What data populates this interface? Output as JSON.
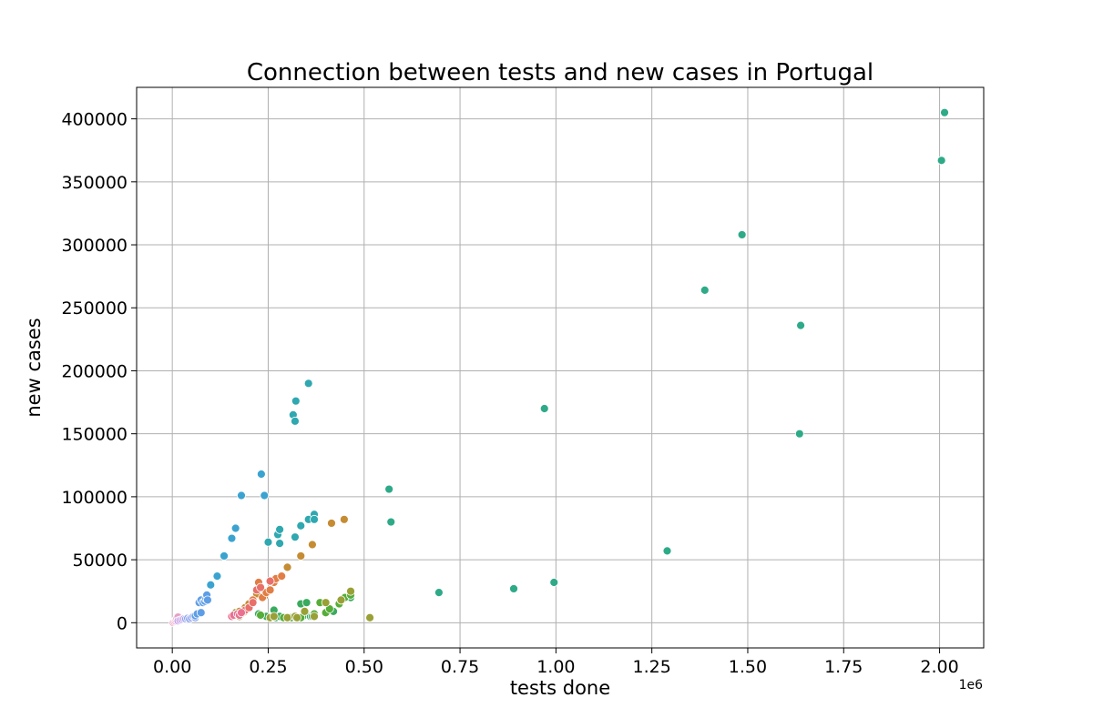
{
  "chart_data": {
    "type": "scatter",
    "title": "Connection between tests and new cases in Portugal",
    "xlabel": "tests done",
    "ylabel": "new cases",
    "x_offset_label": "1e6",
    "x_scale": 1000000,
    "xlim": [
      -93000,
      2115000
    ],
    "ylim": [
      -20000,
      425000
    ],
    "xticks": [
      0,
      250000,
      500000,
      750000,
      1000000,
      1250000,
      1500000,
      1750000,
      2000000
    ],
    "xtick_labels": [
      "0.00",
      "0.25",
      "0.50",
      "0.75",
      "1.00",
      "1.25",
      "1.50",
      "1.75",
      "2.00"
    ],
    "yticks": [
      0,
      50000,
      100000,
      150000,
      200000,
      250000,
      300000,
      350000,
      400000
    ],
    "ytick_labels": [
      "0",
      "50000",
      "100000",
      "150000",
      "200000",
      "250000",
      "300000",
      "350000",
      "400000"
    ],
    "grid": true,
    "colors": [
      "#e6a0c4",
      "#c4a0e8",
      "#8fa4ee",
      "#5e9ee6",
      "#3ba3d0",
      "#2fa8b0",
      "#2eaa88",
      "#3aab5e",
      "#56ad38",
      "#99a035",
      "#c58c33",
      "#e27d45",
      "#e8706a",
      "#ea7090"
    ],
    "series": [
      {
        "color_index": 0,
        "x": [
          2000,
          5000,
          8000,
          10000,
          12000,
          15000
        ],
        "y": [
          200,
          1000,
          1500,
          2500,
          3500,
          4500
        ]
      },
      {
        "color_index": 1,
        "x": [
          15000,
          20000,
          25000,
          30000
        ],
        "y": [
          1500,
          2000,
          2500,
          3000
        ]
      },
      {
        "color_index": 2,
        "x": [
          35000,
          40000,
          45000,
          50000,
          55000,
          60000
        ],
        "y": [
          3000,
          3500,
          3000,
          4000,
          5000,
          4000
        ]
      },
      {
        "color_index": 3,
        "x": [
          60000,
          65000,
          70000,
          75000,
          80000,
          85000,
          88000,
          90000,
          92000,
          75000
        ],
        "y": [
          5500,
          7000,
          16000,
          18000,
          16000,
          17000,
          19000,
          22000,
          18000,
          8000
        ]
      },
      {
        "color_index": 4,
        "x": [
          100000,
          117000,
          135000,
          155000,
          165000,
          180000,
          232000,
          240000
        ],
        "y": [
          30000,
          37000,
          53000,
          67000,
          75000,
          101000,
          118000,
          101000
        ]
      },
      {
        "color_index": 5,
        "x": [
          250000,
          275000,
          280000,
          280000,
          315000,
          320000,
          320000,
          322000,
          335000,
          355000,
          355000,
          370000,
          370000
        ],
        "y": [
          64000,
          70000,
          74000,
          63000,
          165000,
          160000,
          68000,
          176000,
          77000,
          190000,
          82000,
          86000,
          82000
        ]
      },
      {
        "color_index": 6,
        "x": [
          565000,
          570000,
          695000,
          890000,
          970000,
          995000,
          1290000,
          1388000,
          1485000,
          1635000,
          1638000,
          2005000,
          2013000
        ],
        "y": [
          106000,
          80000,
          24000,
          27000,
          170000,
          32000,
          57000,
          264000,
          308000,
          150000,
          236000,
          367000,
          405000
        ]
      },
      {
        "color_index": 7,
        "x": [
          225000,
          245000,
          265000,
          270000,
          280000,
          320000,
          335000,
          340000,
          350000,
          360000,
          365000,
          420000,
          465000
        ],
        "y": [
          7000,
          5000,
          10000,
          4000,
          5000,
          4000,
          15000,
          5000,
          16000,
          5000,
          5000,
          9000,
          20000
        ]
      },
      {
        "color_index": 8,
        "x": [
          230000,
          290000,
          310000,
          335000,
          370000,
          385000,
          400000,
          410000,
          435000,
          440000,
          450000,
          465000
        ],
        "y": [
          6000,
          4000,
          4000,
          4000,
          7000,
          16000,
          8000,
          11000,
          15000,
          18000,
          20000,
          22000
        ]
      },
      {
        "color_index": 9,
        "x": [
          165000,
          175000,
          185000,
          255000,
          265000,
          300000,
          320000,
          325000,
          345000,
          370000,
          400000,
          440000,
          465000,
          515000
        ],
        "y": [
          8000,
          5000,
          8000,
          4000,
          5000,
          4000,
          5000,
          4000,
          9000,
          5000,
          16000,
          18000,
          25000,
          4000
        ]
      },
      {
        "color_index": 10,
        "x": [
          175000,
          190000,
          200000,
          220000,
          240000,
          265000,
          300000,
          335000,
          365000,
          415000,
          448000
        ],
        "y": [
          9000,
          12000,
          15000,
          23000,
          21000,
          33000,
          44000,
          53000,
          62000,
          79000,
          82000
        ]
      },
      {
        "color_index": 11,
        "x": [
          210000,
          225000,
          235000,
          245000,
          255000,
          265000,
          270000,
          285000
        ],
        "y": [
          18000,
          32000,
          20000,
          24000,
          26000,
          32000,
          35000,
          37000
        ]
      },
      {
        "color_index": 12,
        "x": [
          180000,
          190000,
          200000,
          210000,
          220000,
          230000,
          255000
        ],
        "y": [
          7000,
          10000,
          12000,
          16000,
          26000,
          28000,
          33000
        ]
      },
      {
        "color_index": 13,
        "x": [
          155000,
          160000,
          170000,
          175000,
          180000
        ],
        "y": [
          5000,
          6000,
          7000,
          6000,
          8000
        ]
      }
    ]
  }
}
